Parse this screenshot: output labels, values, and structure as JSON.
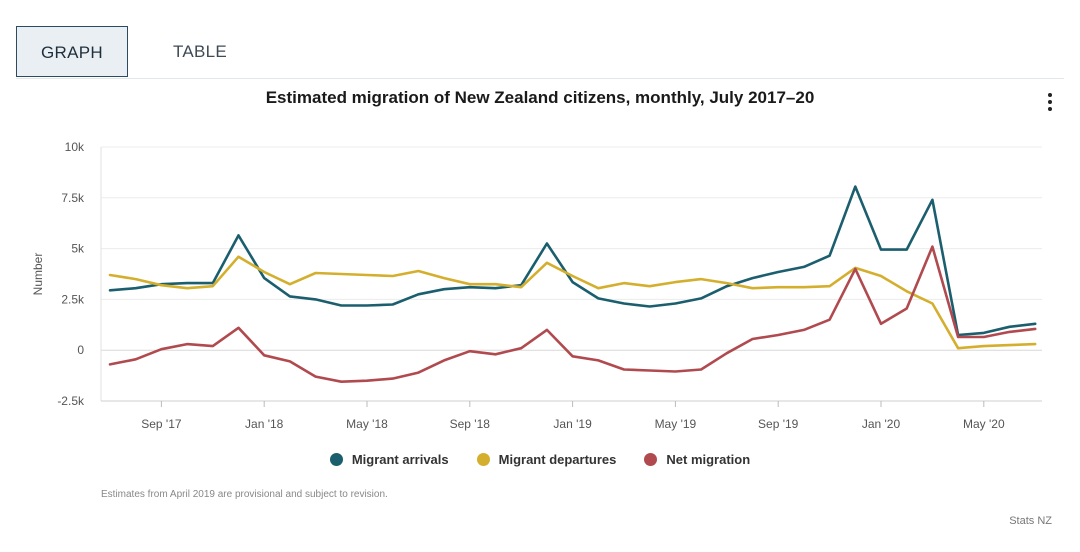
{
  "tabs": [
    {
      "label": "GRAPH"
    },
    {
      "label": "TABLE"
    }
  ],
  "chart_data": {
    "type": "line",
    "title": "Estimated migration of New Zealand citizens, monthly, July 2017–20",
    "ylabel": "Number",
    "xlabel": "",
    "ylim": [
      -2500,
      10000
    ],
    "y_ticks": [
      {
        "value": -2500,
        "label": "-2.5k"
      },
      {
        "value": 0,
        "label": "0"
      },
      {
        "value": 2500,
        "label": "2.5k"
      },
      {
        "value": 5000,
        "label": "5k"
      },
      {
        "value": 7500,
        "label": "7.5k"
      },
      {
        "value": 10000,
        "label": "10k"
      }
    ],
    "x_ticks": [
      {
        "index": 2,
        "label": "Sep '17"
      },
      {
        "index": 6,
        "label": "Jan '18"
      },
      {
        "index": 10,
        "label": "May '18"
      },
      {
        "index": 14,
        "label": "Sep '18"
      },
      {
        "index": 18,
        "label": "Jan '19"
      },
      {
        "index": 22,
        "label": "May '19"
      },
      {
        "index": 26,
        "label": "Sep '19"
      },
      {
        "index": 30,
        "label": "Jan '20"
      },
      {
        "index": 34,
        "label": "May '20"
      }
    ],
    "categories": [
      "Jul 2017",
      "Aug 2017",
      "Sep 2017",
      "Oct 2017",
      "Nov 2017",
      "Dec 2017",
      "Jan 2018",
      "Feb 2018",
      "Mar 2018",
      "Apr 2018",
      "May 2018",
      "Jun 2018",
      "Jul 2018",
      "Aug 2018",
      "Sep 2018",
      "Oct 2018",
      "Nov 2018",
      "Dec 2018",
      "Jan 2019",
      "Feb 2019",
      "Mar 2019",
      "Apr 2019",
      "May 2019",
      "Jun 2019",
      "Jul 2019",
      "Aug 2019",
      "Sep 2019",
      "Oct 2019",
      "Nov 2019",
      "Dec 2019",
      "Jan 2020",
      "Feb 2020",
      "Mar 2020",
      "Apr 2020",
      "May 2020",
      "Jun 2020",
      "Jul 2020"
    ],
    "series": [
      {
        "name": "Migrant arrivals",
        "color": "#1b5e6e",
        "values": [
          2950,
          3050,
          3250,
          3300,
          3300,
          5650,
          3550,
          2650,
          2500,
          2200,
          2200,
          2250,
          2750,
          3000,
          3100,
          3050,
          3200,
          5250,
          3350,
          2550,
          2300,
          2150,
          2300,
          2550,
          3150,
          3550,
          3850,
          4100,
          4650,
          8050,
          4950,
          4950,
          7400,
          750,
          850,
          1150,
          1300
        ]
      },
      {
        "name": "Migrant departures",
        "color": "#d4af2e",
        "values": [
          3700,
          3500,
          3200,
          3050,
          3150,
          4600,
          3850,
          3250,
          3800,
          3750,
          3700,
          3650,
          3900,
          3550,
          3250,
          3250,
          3100,
          4300,
          3650,
          3050,
          3300,
          3150,
          3350,
          3500,
          3300,
          3050,
          3100,
          3100,
          3150,
          4050,
          3650,
          2900,
          2300,
          100,
          200,
          250,
          300
        ]
      },
      {
        "name": "Net migration",
        "color": "#b04a4f",
        "values": [
          -700,
          -450,
          50,
          300,
          200,
          1100,
          -250,
          -550,
          -1300,
          -1550,
          -1500,
          -1400,
          -1100,
          -500,
          -50,
          -200,
          100,
          1000,
          -300,
          -500,
          -950,
          -1000,
          -1050,
          -950,
          -150,
          550,
          750,
          1000,
          1500,
          4000,
          1300,
          2050,
          5100,
          650,
          650,
          900,
          1050
        ]
      }
    ]
  },
  "footer": {
    "note": "Estimates from April 2019 are provisional and subject to revision.",
    "source": "Stats NZ"
  }
}
